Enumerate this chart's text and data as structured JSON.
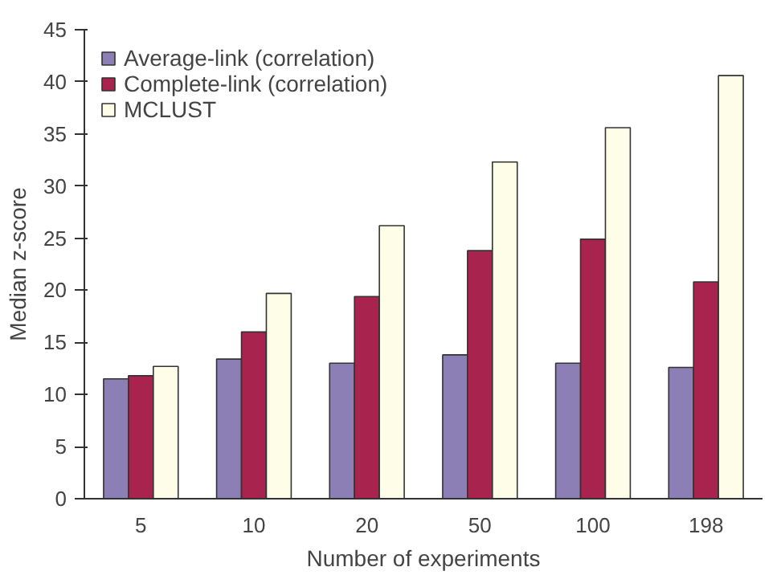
{
  "chart_data": {
    "type": "bar",
    "xlabel": "Number of experiments",
    "ylabel": "Median z-score",
    "categories": [
      "5",
      "10",
      "20",
      "50",
      "100",
      "198"
    ],
    "series": [
      {
        "name": "Average-link (correlation)",
        "color": "#8b7fb5",
        "values": [
          11.5,
          13.4,
          13.0,
          13.8,
          13.0,
          12.6
        ]
      },
      {
        "name": "Complete-link (correlation)",
        "color": "#a8234e",
        "values": [
          11.8,
          16.0,
          19.4,
          23.8,
          24.9,
          20.8
        ]
      },
      {
        "name": "MCLUST",
        "color": "#fdfde8",
        "values": [
          12.7,
          19.7,
          26.2,
          32.3,
          35.6,
          40.6
        ]
      }
    ],
    "ylim": [
      0,
      45
    ],
    "yticks": [
      0,
      5,
      10,
      15,
      20,
      25,
      30,
      35,
      40,
      45
    ],
    "grid": false,
    "legend": "top left"
  }
}
